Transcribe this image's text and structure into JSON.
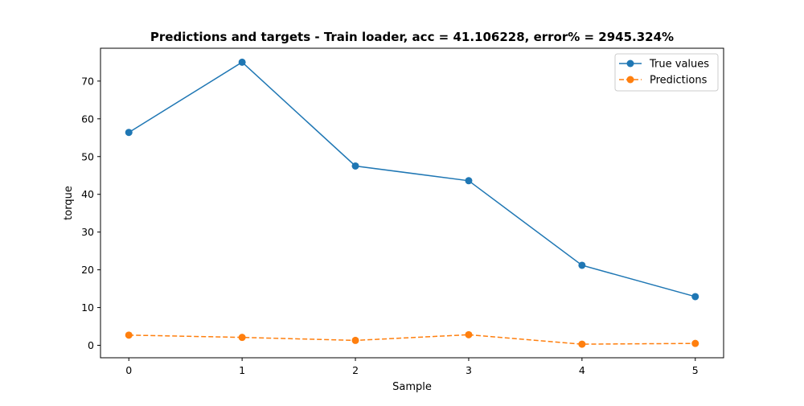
{
  "chart_data": {
    "type": "line",
    "title": "Predictions and targets - Train loader, acc = 41.106228, error% = 2945.324%",
    "xlabel": "Sample",
    "ylabel": "torque",
    "x": [
      0,
      1,
      2,
      3,
      4,
      5
    ],
    "xticks": [
      0,
      1,
      2,
      3,
      4,
      5
    ],
    "xlim": [
      -0.25,
      5.25
    ],
    "yticks": [
      0,
      10,
      20,
      30,
      40,
      50,
      60,
      70
    ],
    "ylim": [
      -3.3,
      78.7
    ],
    "grid": false,
    "legend_position": "top-right",
    "series": [
      {
        "name": "True values",
        "color": "#1f77b4",
        "linestyle": "solid",
        "marker": "circle",
        "values": [
          56.4,
          75.0,
          47.5,
          43.6,
          21.2,
          12.9
        ]
      },
      {
        "name": "Predictions",
        "color": "#ff7f0e",
        "linestyle": "dashed",
        "marker": "circle",
        "values": [
          2.7,
          2.1,
          1.3,
          2.8,
          0.3,
          0.5
        ]
      }
    ]
  }
}
